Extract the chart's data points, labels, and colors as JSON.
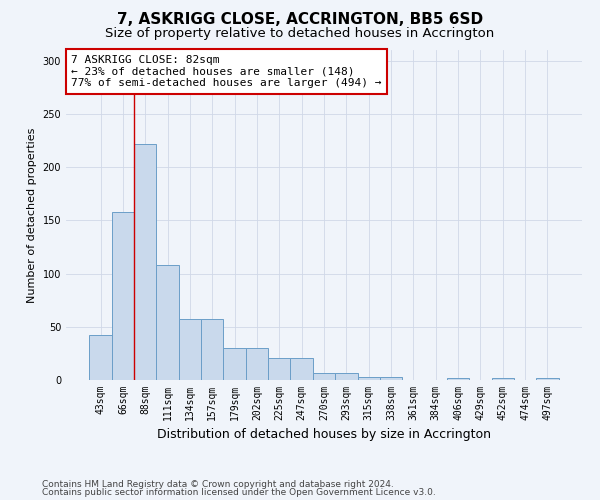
{
  "title": "7, ASKRIGG CLOSE, ACCRINGTON, BB5 6SD",
  "subtitle": "Size of property relative to detached houses in Accrington",
  "xlabel": "Distribution of detached houses by size in Accrington",
  "ylabel": "Number of detached properties",
  "categories": [
    "43sqm",
    "66sqm",
    "88sqm",
    "111sqm",
    "134sqm",
    "157sqm",
    "179sqm",
    "202sqm",
    "225sqm",
    "247sqm",
    "270sqm",
    "293sqm",
    "315sqm",
    "338sqm",
    "361sqm",
    "384sqm",
    "406sqm",
    "429sqm",
    "452sqm",
    "474sqm",
    "497sqm"
  ],
  "values": [
    42,
    158,
    222,
    108,
    57,
    57,
    30,
    30,
    21,
    21,
    7,
    7,
    3,
    3,
    0,
    0,
    2,
    0,
    2,
    0,
    2
  ],
  "bar_color": "#c9d9ec",
  "bar_edge_color": "#6b9ec8",
  "grid_color": "#d0d8e8",
  "background_color": "#f0f4fa",
  "annotation_text": "7 ASKRIGG CLOSE: 82sqm\n← 23% of detached houses are smaller (148)\n77% of semi-detached houses are larger (494) →",
  "annotation_box_color": "#ffffff",
  "annotation_box_edge": "#cc0000",
  "marker_line_color": "#cc0000",
  "ylim": [
    0,
    310
  ],
  "yticks": [
    0,
    50,
    100,
    150,
    200,
    250,
    300
  ],
  "footer1": "Contains HM Land Registry data © Crown copyright and database right 2024.",
  "footer2": "Contains public sector information licensed under the Open Government Licence v3.0.",
  "title_fontsize": 11,
  "subtitle_fontsize": 9.5,
  "xlabel_fontsize": 9,
  "ylabel_fontsize": 8,
  "tick_fontsize": 7,
  "annot_fontsize": 8,
  "footer_fontsize": 6.5
}
